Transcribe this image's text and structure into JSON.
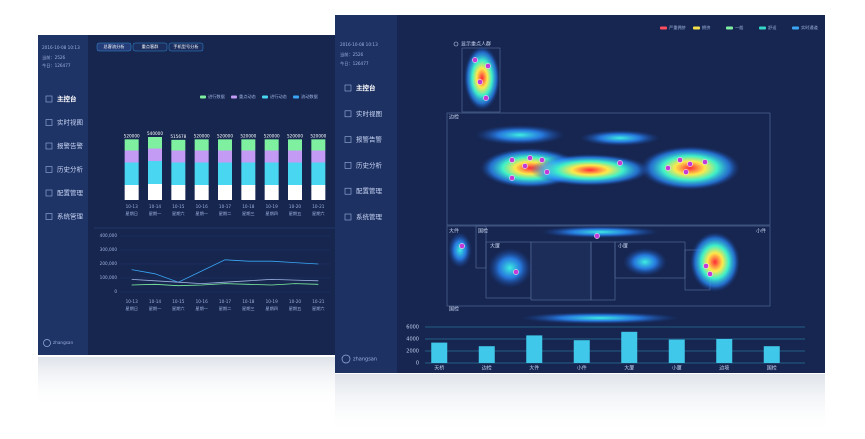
{
  "back_panel": {
    "clock": "2016-10-08 10:13",
    "current": "当前：2526",
    "today": "今日：126477",
    "nav": [
      "主控台",
      "实时视图",
      "报警告警",
      "历史分析",
      "配置管理",
      "系统管理"
    ],
    "user": "zhangsan",
    "tabs": [
      "总客流分析",
      "重点客群",
      "手机型号分析"
    ],
    "legend": [
      {
        "name": "进行数据",
        "color": "#7ef0a0"
      },
      {
        "name": "重点动态",
        "color": "#c39bf5"
      },
      {
        "name": "进行动态",
        "color": "#49d6f0"
      },
      {
        "name": "流动数据",
        "color": "#3aa6f5"
      }
    ]
  },
  "front_panel": {
    "clock": "2016-10-08 10:13",
    "current": "当前：2526",
    "today": "今日：126477",
    "nav": [
      "主控台",
      "实时视图",
      "报警告警",
      "历史分析",
      "配置管理",
      "系统管理"
    ],
    "user": "zhangsan",
    "toggle": "显示重点人群",
    "legend": [
      {
        "name": "严重拥挤",
        "color": "#ff4d5e"
      },
      {
        "name": "拥挤",
        "color": "#f5e04a"
      },
      {
        "name": "一般",
        "color": "#7ef0a0"
      },
      {
        "name": "舒适",
        "color": "#35d6c8"
      },
      {
        "name": "实时通道",
        "color": "#3aa6f5"
      }
    ],
    "zones": [
      "边检",
      "大件",
      "国检",
      "大厦",
      "小厦",
      "小件",
      "国检"
    ]
  },
  "chart_data": [
    {
      "type": "bar",
      "categories": [
        "10-13",
        "10-14",
        "10-15",
        "10-16",
        "10-17",
        "10-18",
        "10-19",
        "10-20",
        "10-21"
      ],
      "weekdays": [
        "星期日",
        "星期一",
        "星期六",
        "星期一",
        "星期二",
        "星期三",
        "星期四",
        "星期五",
        "星期六"
      ],
      "values": [
        520000,
        540000,
        515678,
        520000,
        520000,
        520000,
        520000,
        520000,
        520000
      ],
      "ylim": [
        0,
        600000
      ]
    },
    {
      "type": "line",
      "categories": [
        "10-13",
        "10-14",
        "10-15",
        "10-16",
        "10-17",
        "10-18",
        "10-19",
        "10-20",
        "10-21"
      ],
      "weekdays": [
        "星期日",
        "星期一",
        "星期六",
        "星期一",
        "星期二",
        "星期三",
        "星期四",
        "星期五",
        "星期六"
      ],
      "ylim": [
        0,
        400000
      ],
      "yticks": [
        {
          "value": 0,
          "label": "0"
        },
        {
          "value": 100000,
          "label": "100,000"
        },
        {
          "value": 200000,
          "label": "200,000"
        },
        {
          "value": 300000,
          "label": "300,000"
        },
        {
          "value": 400000,
          "label": "400,000"
        }
      ],
      "series": [
        {
          "color": "#3aa6f5",
          "values": [
            160000,
            130000,
            70000,
            150000,
            230000,
            220000,
            220000,
            210000,
            200000
          ]
        },
        {
          "color": "#9fb3e0",
          "values": [
            90000,
            80000,
            70000,
            60000,
            70000,
            80000,
            90000,
            85000,
            80000
          ]
        },
        {
          "color": "#7ef0a0",
          "values": [
            50000,
            55000,
            45000,
            50000,
            60000,
            55000,
            50000,
            60000,
            55000
          ]
        }
      ]
    },
    {
      "type": "bar",
      "categories": [
        "天桥",
        "边检",
        "大件",
        "小件",
        "大厦",
        "小厦",
        "边境",
        "国检"
      ],
      "values": [
        3400,
        2800,
        4600,
        3800,
        5200,
        3900,
        4000,
        2800
      ],
      "color": "#3fc8ea",
      "ylim": [
        0,
        6000
      ],
      "yticks": [
        0,
        2000,
        4000,
        6000
      ],
      "grid": true
    }
  ]
}
